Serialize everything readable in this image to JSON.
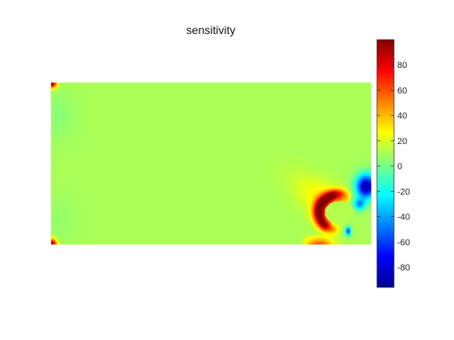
{
  "chart_data": {
    "type": "heatmap",
    "title": "sensitivity",
    "xlabel": "",
    "ylabel": "",
    "colormap": "jet",
    "colorbar": {
      "range": [
        -96,
        100
      ],
      "ticks": [
        80,
        60,
        40,
        20,
        0,
        -20,
        -40,
        -60,
        -80
      ],
      "tick_labels": [
        "80",
        "60",
        "40",
        "20",
        "0",
        "-20",
        "-40",
        "-60",
        "-80"
      ]
    },
    "axes_visible": false,
    "grid": false,
    "background_value": 10,
    "features": [
      {
        "name": "top-left-corner-hotspot",
        "peak": 100
      },
      {
        "name": "bottom-left-corner-hotspot",
        "peak": 100
      },
      {
        "name": "bottom-right-load-lobe",
        "peak": 100,
        "trough": -96
      },
      {
        "name": "bottom-edge-hotspot",
        "peak": 90
      }
    ]
  }
}
